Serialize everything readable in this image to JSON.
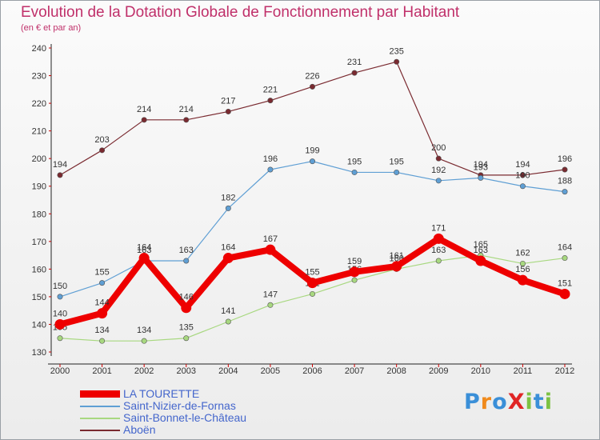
{
  "header": {
    "title": "Evolution de la Dotation Globale de Fonctionnement par Habitant",
    "subtitle": "(en € et par an)"
  },
  "logo": {
    "text": "ProXiti"
  },
  "chart_data": {
    "type": "line",
    "title": "Evolution de la Dotation Globale de Fonctionnement par Habitant",
    "subtitle": "(en € et par an)",
    "xlabel": "",
    "ylabel": "",
    "ylim": [
      130,
      240
    ],
    "yticks": [
      130,
      140,
      150,
      160,
      170,
      180,
      190,
      200,
      210,
      220,
      230,
      240
    ],
    "grid": false,
    "legend_position": "bottom-left",
    "x": [
      "2000",
      "2001",
      "2002",
      "2003",
      "2004",
      "2005",
      "2006",
      "2007",
      "2008",
      "2009",
      "2010",
      "2011",
      "2012"
    ],
    "series": [
      {
        "name": "Aboën",
        "color": "#7a2a30",
        "values": [
          194,
          203,
          214,
          214,
          217,
          221,
          226,
          231,
          235,
          200,
          194,
          194,
          196
        ]
      },
      {
        "name": "Saint-Nizier-de-Fornas",
        "color": "#5f9fd4",
        "values": [
          150,
          155,
          163,
          163,
          182,
          196,
          199,
          195,
          195,
          192,
          193,
          190,
          188
        ]
      },
      {
        "name": "Saint-Bonnet-le-Château",
        "color": "#a8d880",
        "values": [
          135,
          134,
          134,
          135,
          141,
          147,
          151,
          156,
          160,
          163,
          165,
          162,
          164
        ]
      },
      {
        "name": "LA TOURETTE",
        "color": "#ee0000",
        "values": [
          140,
          144,
          164,
          146,
          164,
          167,
          155,
          159,
          161,
          171,
          163,
          156,
          151
        ]
      }
    ]
  }
}
